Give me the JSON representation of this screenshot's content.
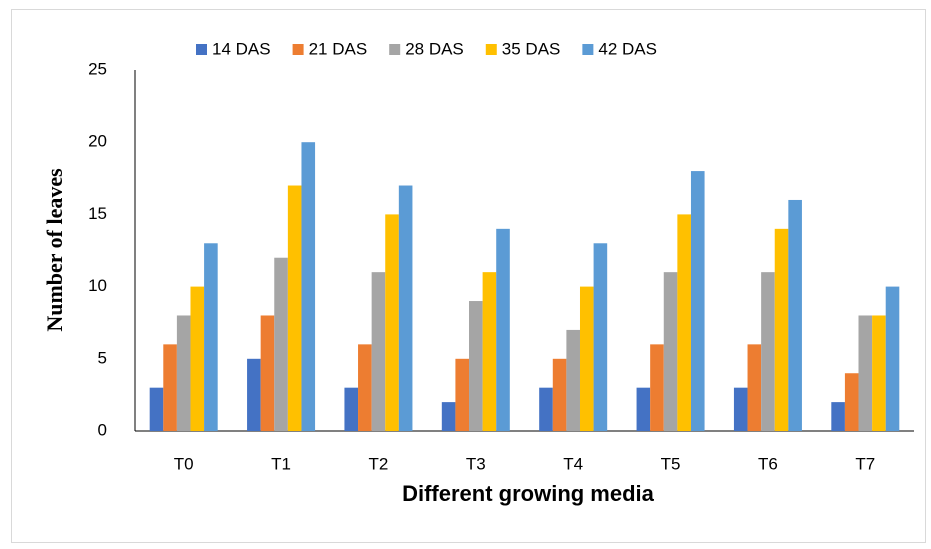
{
  "chart_data": {
    "type": "bar",
    "xlabel": "Different growing media",
    "ylabel": "Number of leaves",
    "categories": [
      "T0",
      "T1",
      "T2",
      "T3",
      "T4",
      "T5",
      "T6",
      "T7"
    ],
    "series": [
      {
        "name": "14 DAS",
        "color": "#4472c4",
        "values": [
          3,
          5,
          3,
          2,
          3,
          3,
          3,
          2
        ]
      },
      {
        "name": "21 DAS",
        "color": "#ed7d31",
        "values": [
          6,
          8,
          6,
          5,
          5,
          6,
          6,
          4
        ]
      },
      {
        "name": "28 DAS",
        "color": "#a5a5a5",
        "values": [
          8,
          12,
          11,
          9,
          7,
          11,
          11,
          8
        ]
      },
      {
        "name": "35 DAS",
        "color": "#ffc000",
        "values": [
          10,
          17,
          15,
          11,
          10,
          15,
          14,
          8
        ]
      },
      {
        "name": "42 DAS",
        "color": "#5b9bd5",
        "values": [
          13,
          20,
          17,
          14,
          13,
          18,
          16,
          10
        ]
      }
    ],
    "ylim": [
      0,
      25
    ],
    "yticks": [
      0,
      5,
      10,
      15,
      20,
      25
    ],
    "grid": false,
    "legend": "top"
  }
}
